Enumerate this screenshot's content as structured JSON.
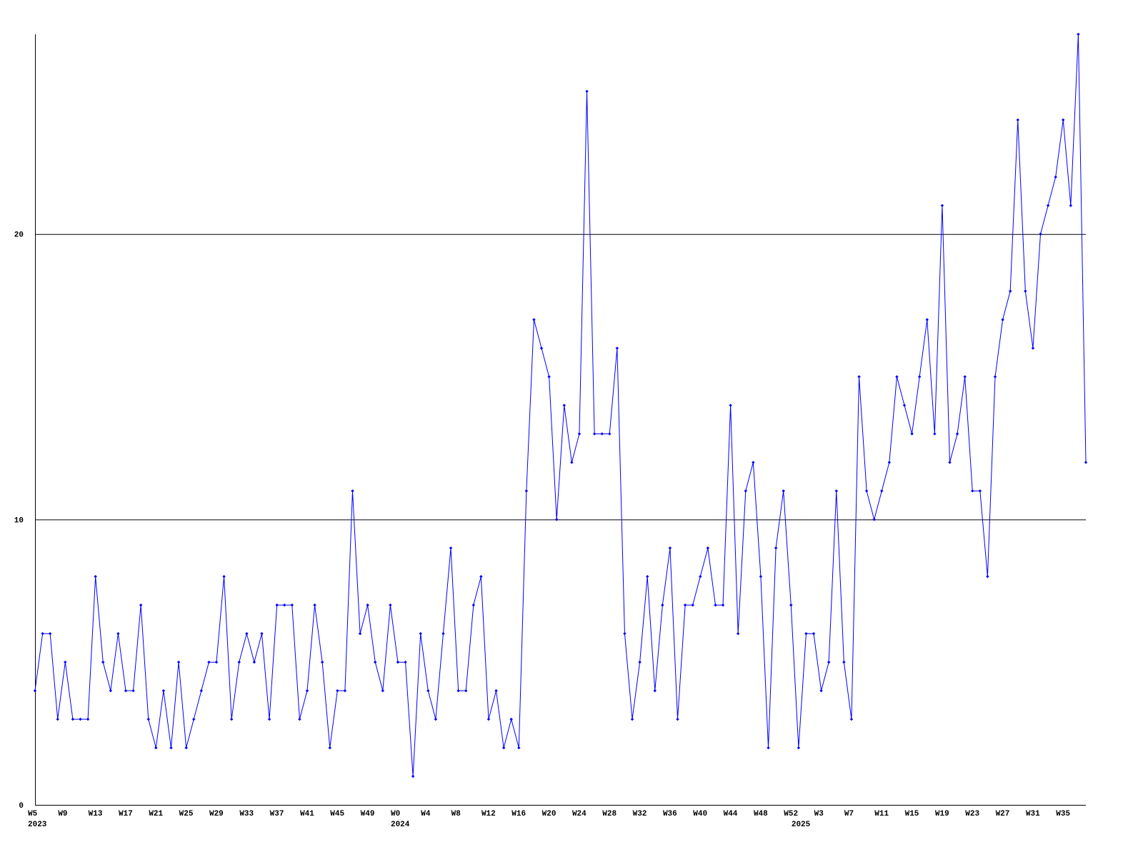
{
  "chart_data": {
    "type": "line",
    "color": "#0000ff",
    "categories": [
      "W5",
      null,
      null,
      null,
      "W9",
      null,
      null,
      null,
      "W13",
      null,
      null,
      null,
      "W17",
      null,
      null,
      null,
      "W21",
      null,
      null,
      null,
      "W25",
      null,
      null,
      null,
      "W29",
      null,
      null,
      null,
      "W33",
      null,
      null,
      null,
      "W37",
      null,
      null,
      null,
      "W41",
      null,
      null,
      null,
      "W45",
      null,
      null,
      null,
      "W49",
      null,
      null,
      null,
      "W0",
      null,
      null,
      null,
      "W4",
      null,
      null,
      null,
      "W8",
      null,
      null,
      null,
      "W12",
      null,
      null,
      null,
      "W16",
      null,
      null,
      null,
      "W20",
      null,
      null,
      null,
      "W24",
      null,
      null,
      null,
      "W28",
      null,
      null,
      null,
      "W32",
      null,
      null,
      null,
      "W36",
      null,
      null,
      null,
      "W40",
      null,
      null,
      null,
      "W44",
      null,
      null,
      null,
      "W48",
      null,
      null,
      null,
      "W52",
      null,
      null,
      null,
      "W3",
      null,
      null,
      null,
      "W7",
      null,
      null,
      null,
      "W11",
      null,
      null,
      null,
      "W15",
      null,
      null,
      null,
      "W19",
      null,
      null,
      null,
      "W23",
      null,
      null,
      null,
      "W27",
      null,
      null,
      null,
      "W31",
      null,
      null,
      null,
      "W35",
      null,
      null,
      null
    ],
    "years": [
      "2023",
      null,
      null,
      null,
      null,
      null,
      null,
      null,
      null,
      null,
      null,
      null,
      null,
      null,
      null,
      null,
      null,
      null,
      null,
      null,
      null,
      null,
      null,
      null,
      null,
      null,
      null,
      null,
      null,
      null,
      null,
      null,
      null,
      null,
      null,
      null,
      null,
      null,
      null,
      null,
      null,
      null,
      null,
      null,
      null,
      null,
      null,
      null,
      "2024",
      null,
      null,
      null,
      null,
      null,
      null,
      null,
      null,
      null,
      null,
      null,
      null,
      null,
      null,
      null,
      null,
      null,
      null,
      null,
      null,
      null,
      null,
      null,
      null,
      null,
      null,
      null,
      null,
      null,
      null,
      null,
      null,
      null,
      null,
      null,
      null,
      null,
      null,
      null,
      null,
      null,
      null,
      null,
      null,
      null,
      null,
      null,
      null,
      null,
      null,
      null,
      null,
      "2025",
      null,
      null,
      null,
      null,
      null,
      null,
      null,
      null,
      null,
      null,
      null,
      null,
      null,
      null,
      null,
      null,
      null,
      null,
      null,
      null,
      null,
      null,
      null,
      null,
      null,
      null,
      null,
      null,
      null,
      null,
      null,
      null,
      null,
      null,
      null,
      null,
      null,
      null
    ],
    "values": [
      4,
      6,
      6,
      3,
      5,
      3,
      3,
      3,
      8,
      5,
      4,
      6,
      4,
      4,
      7,
      3,
      2,
      4,
      2,
      5,
      2,
      3,
      4,
      5,
      5,
      8,
      3,
      5,
      6,
      5,
      6,
      3,
      7,
      7,
      7,
      3,
      4,
      7,
      5,
      2,
      4,
      4,
      11,
      6,
      7,
      5,
      4,
      7,
      5,
      5,
      1,
      6,
      4,
      3,
      6,
      9,
      4,
      4,
      7,
      8,
      3,
      4,
      2,
      3,
      2,
      11,
      17,
      16,
      15,
      10,
      14,
      12,
      13,
      25,
      13,
      13,
      13,
      16,
      6,
      3,
      5,
      8,
      4,
      7,
      9,
      3,
      7,
      7,
      8,
      9,
      7,
      7,
      14,
      6,
      11,
      12,
      8,
      2,
      9,
      11,
      7,
      2,
      6,
      6,
      4,
      5,
      11,
      5,
      3,
      15,
      11,
      10,
      11,
      12,
      15,
      14,
      13,
      15,
      17,
      13,
      21,
      12,
      13,
      15,
      11,
      11,
      8,
      15,
      17,
      18,
      24,
      18,
      16,
      20,
      21,
      22,
      24,
      21,
      27,
      12
    ],
    "ylim": [
      0,
      27
    ],
    "yticks": [
      0,
      10,
      20
    ],
    "grid": true
  }
}
